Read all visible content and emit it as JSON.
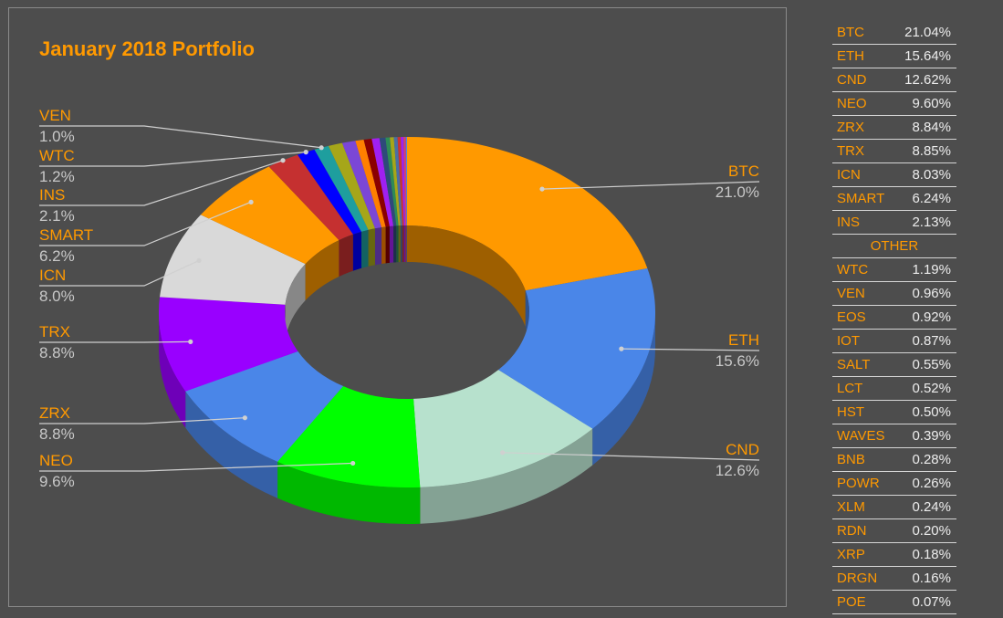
{
  "chart_data": {
    "type": "pie",
    "style": "3d-donut",
    "title": "January 2018 Portfolio",
    "labels": [
      "BTC",
      "ETH",
      "CND",
      "NEO",
      "ZRX",
      "TRX",
      "ICN",
      "SMART",
      "INS",
      "WTC",
      "VEN",
      "EOS",
      "IOT",
      "SALT",
      "LCT",
      "HST",
      "WAVES",
      "BNB",
      "POWR",
      "XLM",
      "RDN",
      "XRP",
      "DRGN",
      "POE"
    ],
    "values": [
      21.04,
      15.64,
      12.62,
      9.6,
      8.84,
      8.85,
      8.03,
      6.24,
      2.13,
      1.19,
      0.96,
      0.92,
      0.87,
      0.55,
      0.52,
      0.5,
      0.39,
      0.28,
      0.26,
      0.24,
      0.2,
      0.18,
      0.16,
      0.07
    ],
    "colors": [
      "#ff9900",
      "#4a86e8",
      "#b7e1cd",
      "#00ff00",
      "#4a86e8",
      "#9900ff",
      "#d9d9d9",
      "#ff9900",
      "#c53030",
      "#0000ff",
      "#1e9e9e",
      "#a6a619",
      "#7b47d6",
      "#ff7f00",
      "#8b0000",
      "#a020f0",
      "#2e4a7a",
      "#2e8b57",
      "#a6a619",
      "#4a6fa5",
      "#cc3333",
      "#a020f0",
      "#cc4477",
      "#4a86e8"
    ],
    "slice_labels": [
      {
        "name": "BTC",
        "pct": "21.0%"
      },
      {
        "name": "ETH",
        "pct": "15.6%"
      },
      {
        "name": "CND",
        "pct": "12.6%"
      },
      {
        "name": "NEO",
        "pct": "9.6%"
      },
      {
        "name": "ZRX",
        "pct": "8.8%"
      },
      {
        "name": "TRX",
        "pct": "8.8%"
      },
      {
        "name": "ICN",
        "pct": "8.0%"
      },
      {
        "name": "SMART",
        "pct": "6.2%"
      },
      {
        "name": "INS",
        "pct": "2.1%"
      },
      {
        "name": "WTC",
        "pct": "1.2%"
      },
      {
        "name": "VEN",
        "pct": "1.0%"
      }
    ],
    "legend": "none"
  },
  "table": {
    "top_rows": [
      {
        "name": "BTC",
        "value": "21.04%"
      },
      {
        "name": "ETH",
        "value": "15.64%"
      },
      {
        "name": "CND",
        "value": "12.62%"
      },
      {
        "name": "NEO",
        "value": "9.60%"
      },
      {
        "name": "ZRX",
        "value": "8.84%"
      },
      {
        "name": "TRX",
        "value": "8.85%"
      },
      {
        "name": "ICN",
        "value": "8.03%"
      },
      {
        "name": "SMART",
        "value": "6.24%"
      },
      {
        "name": "INS",
        "value": "2.13%"
      }
    ],
    "other_label": "OTHER",
    "other_rows": [
      {
        "name": "WTC",
        "value": "1.19%"
      },
      {
        "name": "VEN",
        "value": "0.96%"
      },
      {
        "name": "EOS",
        "value": "0.92%"
      },
      {
        "name": "IOT",
        "value": "0.87%"
      },
      {
        "name": "SALT",
        "value": "0.55%"
      },
      {
        "name": "LCT",
        "value": "0.52%"
      },
      {
        "name": "HST",
        "value": "0.50%"
      },
      {
        "name": "WAVES",
        "value": "0.39%"
      },
      {
        "name": "BNB",
        "value": "0.28%"
      },
      {
        "name": "POWR",
        "value": "0.26%"
      },
      {
        "name": "XLM",
        "value": "0.24%"
      },
      {
        "name": "RDN",
        "value": "0.20%"
      },
      {
        "name": "XRP",
        "value": "0.18%"
      },
      {
        "name": "DRGN",
        "value": "0.16%"
      },
      {
        "name": "POE",
        "value": "0.07%"
      }
    ]
  }
}
